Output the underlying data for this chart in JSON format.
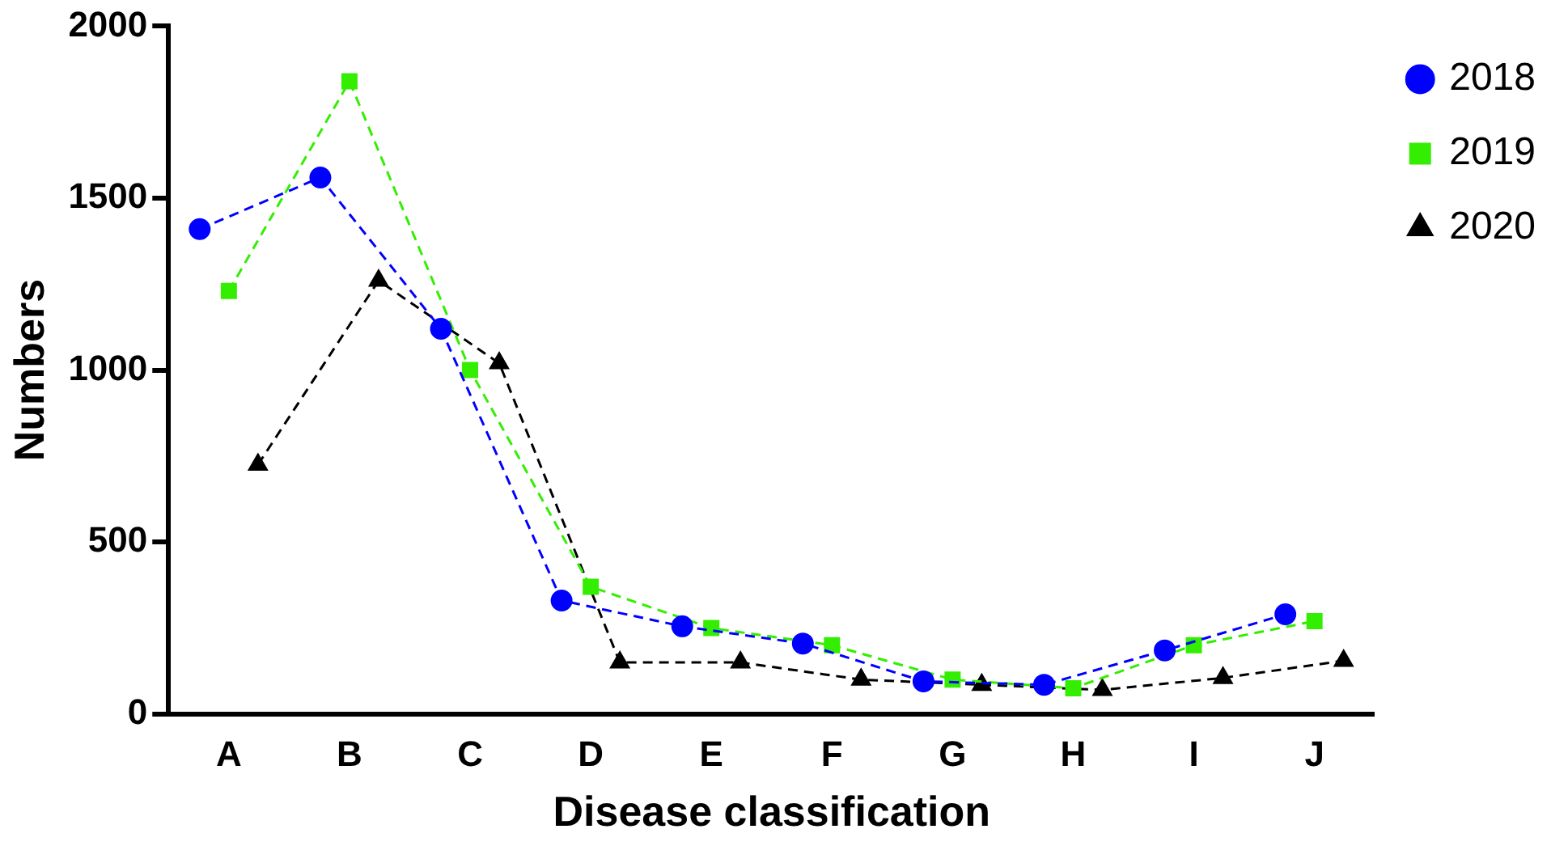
{
  "chart_data": {
    "type": "line",
    "xlabel": "Disease classification",
    "ylabel": "Numbers",
    "categories": [
      "A",
      "B",
      "C",
      "D",
      "E",
      "F",
      "G",
      "H",
      "I",
      "J"
    ],
    "ylim": [
      0,
      2000
    ],
    "yticks": [
      0,
      500,
      1000,
      1500,
      2000
    ],
    "grid": false,
    "legend": "top right",
    "line_style": "dashed",
    "series": [
      {
        "name": "2018",
        "color": "#0000ff",
        "marker": "circle",
        "values": [
          1410,
          1560,
          1120,
          330,
          255,
          205,
          95,
          85,
          185,
          290
        ]
      },
      {
        "name": "2019",
        "color": "#33ee00",
        "marker": "square",
        "values": [
          1230,
          1840,
          1000,
          370,
          250,
          200,
          100,
          75,
          200,
          270
        ]
      },
      {
        "name": "2020",
        "color": "#000000",
        "marker": "triangle",
        "values": [
          725,
          1260,
          1020,
          150,
          150,
          100,
          85,
          70,
          105,
          155
        ]
      }
    ]
  }
}
